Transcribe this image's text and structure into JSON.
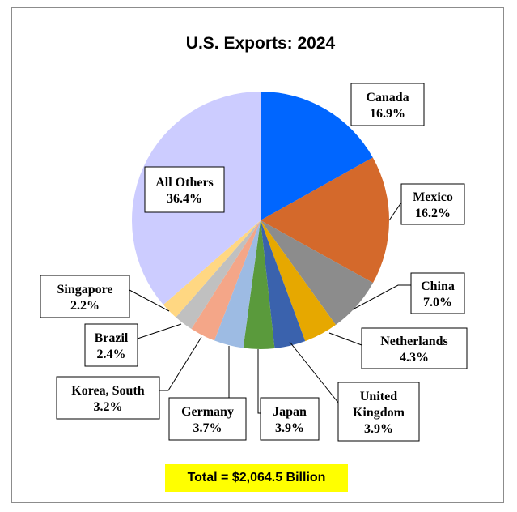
{
  "chart_data": {
    "type": "pie",
    "title": "U.S. Exports: 2024",
    "slices": [
      {
        "name": "Canada",
        "value": 16.9,
        "display": "16.9%",
        "color": "#0066ff"
      },
      {
        "name": "Mexico",
        "value": 16.2,
        "display": "16.2%",
        "color": "#d4692b"
      },
      {
        "name": "China",
        "value": 7.0,
        "display": "7.0%",
        "color": "#8c8c8c"
      },
      {
        "name": "Netherlands",
        "value": 4.3,
        "display": "4.3%",
        "color": "#e6a800"
      },
      {
        "name": "United Kingdom",
        "value": 3.9,
        "display": "3.9%",
        "color": "#3a62ad"
      },
      {
        "name": "Japan",
        "value": 3.9,
        "display": "3.9%",
        "color": "#5a9a3c"
      },
      {
        "name": "Germany",
        "value": 3.7,
        "display": "3.7%",
        "color": "#9dbbe3"
      },
      {
        "name": "Korea, South",
        "value": 3.2,
        "display": "3.2%",
        "color": "#f4a688"
      },
      {
        "name": "Brazil",
        "value": 2.4,
        "display": "2.4%",
        "color": "#c0c0c0"
      },
      {
        "name": "Singapore",
        "value": 2.2,
        "display": "2.2%",
        "color": "#ffd782"
      },
      {
        "name": "All Others",
        "value": 36.4,
        "display": "36.4%",
        "color": "#ccccff"
      }
    ],
    "total": "Total = $2,064.5 Billion"
  }
}
